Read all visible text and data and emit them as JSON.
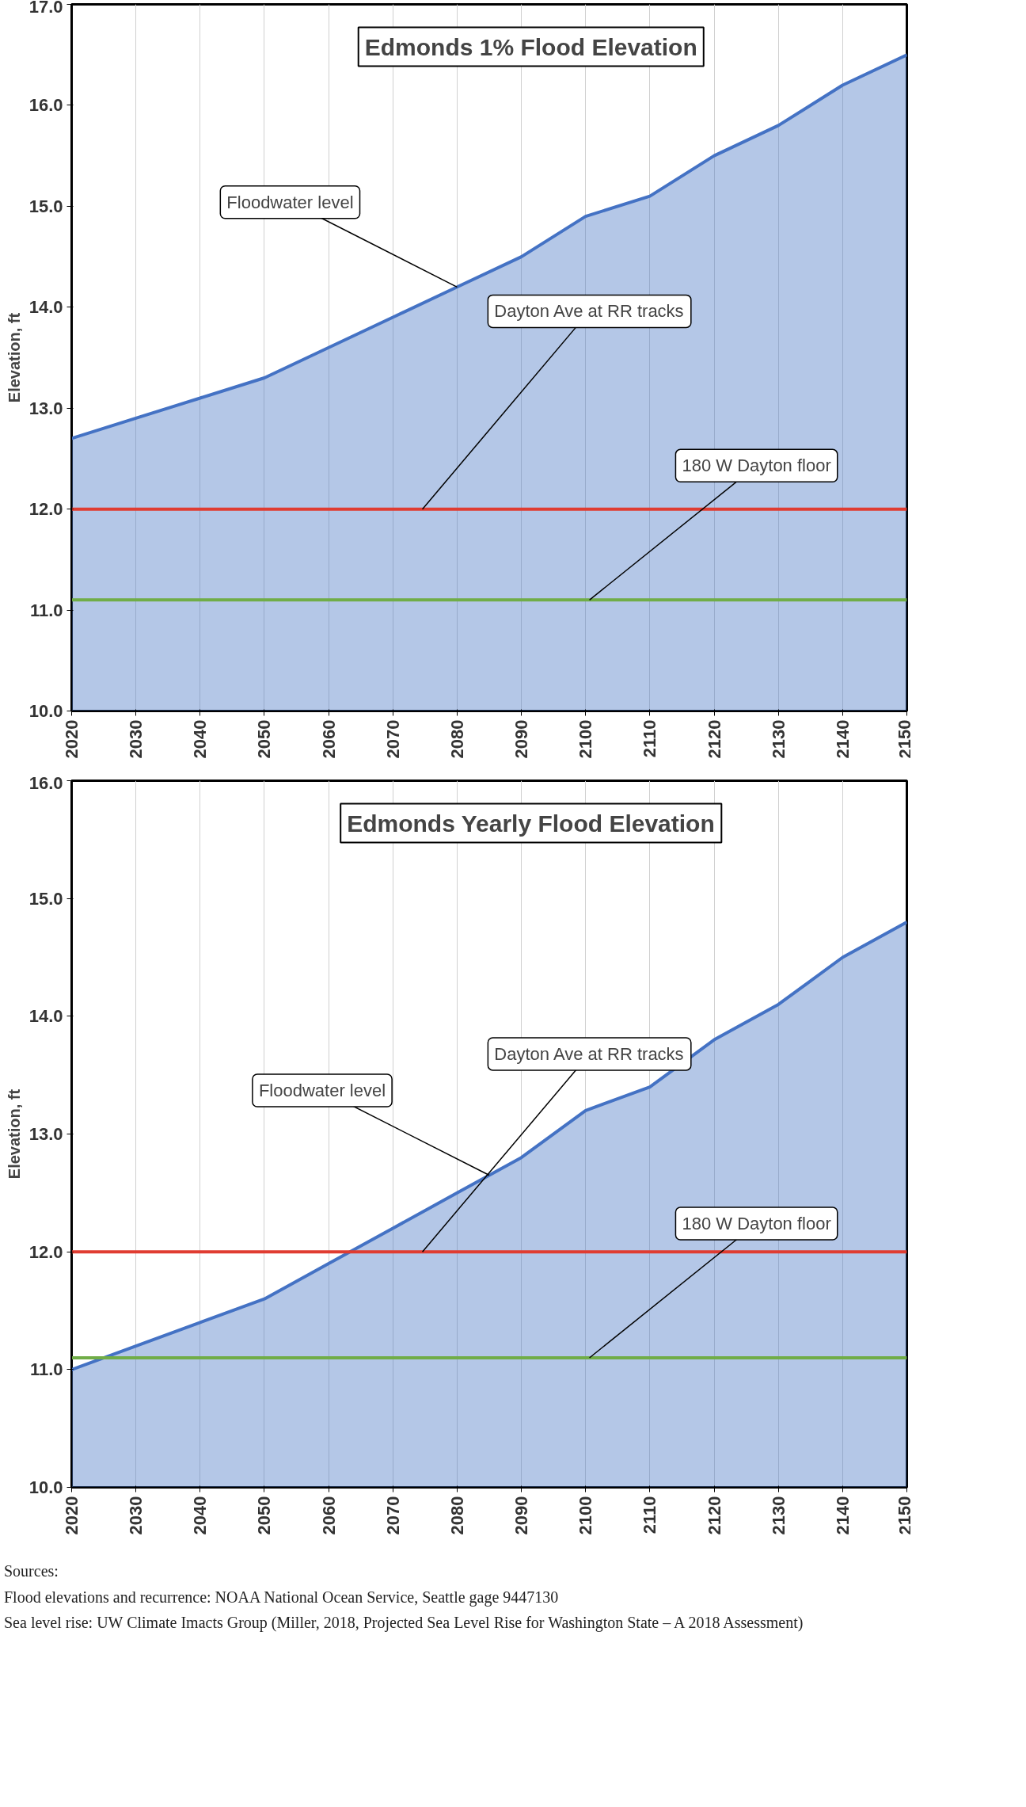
{
  "chart_data": [
    {
      "type": "area",
      "title": "Edmonds 1% Flood Elevation",
      "ylabel": "Elevation, ft",
      "x": [
        2020,
        2030,
        2040,
        2050,
        2060,
        2070,
        2080,
        2090,
        2100,
        2110,
        2120,
        2130,
        2140,
        2150
      ],
      "series": [
        {
          "color": "#4472c4",
          "values": [
            12.7,
            12.9,
            13.1,
            13.3,
            13.6,
            13.9,
            14.2,
            14.5,
            14.9,
            15.1,
            15.5,
            15.8,
            16.2,
            16.5
          ]
        }
      ],
      "xlim": [
        2020,
        2150
      ],
      "xticks": [
        2020,
        2030,
        2040,
        2050,
        2060,
        2070,
        2080,
        2090,
        2100,
        2110,
        2120,
        2130,
        2140,
        2150
      ],
      "ylim": [
        10,
        17
      ],
      "yticks": [
        {
          "value": 10,
          "label": "10.0"
        },
        {
          "value": 11,
          "label": "11.0"
        },
        {
          "value": 12,
          "label": "12.0"
        },
        {
          "value": 13,
          "label": "13.0"
        },
        {
          "value": 14,
          "label": "14.0"
        },
        {
          "value": 15,
          "label": "15.0"
        },
        {
          "value": 16,
          "label": "16.0"
        },
        {
          "value": 17,
          "label": "17.0"
        }
      ],
      "grid": "x",
      "ref_lines": [
        {
          "axis": "y",
          "value": 12.0,
          "label": "Dayton Ave at RR tracks",
          "color": "#e03c31"
        },
        {
          "axis": "y",
          "value": 11.1,
          "label": "180 W Dayton floor",
          "color": "#70ad47"
        }
      ],
      "annotations": [
        {
          "text": "Floodwater level",
          "x": 2080,
          "y": 14.2
        }
      ]
    },
    {
      "type": "area",
      "title": "Edmonds Yearly Flood Elevation",
      "ylabel": "Elevation, ft",
      "x": [
        2020,
        2030,
        2040,
        2050,
        2060,
        2070,
        2080,
        2090,
        2100,
        2110,
        2120,
        2130,
        2140,
        2150
      ],
      "series": [
        {
          "color": "#4472c4",
          "values": [
            11.0,
            11.2,
            11.4,
            11.6,
            11.9,
            12.2,
            12.5,
            12.8,
            13.2,
            13.4,
            13.8,
            14.1,
            14.5,
            14.8
          ]
        }
      ],
      "xlim": [
        2020,
        2150
      ],
      "xticks": [
        2020,
        2030,
        2040,
        2050,
        2060,
        2070,
        2080,
        2090,
        2100,
        2110,
        2120,
        2130,
        2140,
        2150
      ],
      "ylim": [
        10,
        16
      ],
      "yticks": [
        {
          "value": 10,
          "label": "10.0"
        },
        {
          "value": 11,
          "label": "11.0"
        },
        {
          "value": 12,
          "label": "12.0"
        },
        {
          "value": 13,
          "label": "13.0"
        },
        {
          "value": 14,
          "label": "14.0"
        },
        {
          "value": 15,
          "label": "15.0"
        },
        {
          "value": 16,
          "label": "16.0"
        }
      ],
      "grid": "x",
      "ref_lines": [
        {
          "axis": "y",
          "value": 12.0,
          "label": "Dayton Ave at RR tracks",
          "color": "#e03c31"
        },
        {
          "axis": "y",
          "value": 11.1,
          "label": "180 W Dayton floor",
          "color": "#70ad47"
        }
      ],
      "annotations": [
        {
          "text": "Floodwater level",
          "x": 2085,
          "y": 12.65
        },
        "Sources:",
        "Flood elevations and recurrence: NOAA National Ocean Service, Seattle gage 9447130",
        "Sea level rise: UW Climate Imacts Group (Miller, 2018, Projected Sea Level Rise for Washington State – A 2018 Assessment)"
      ]
    }
  ]
}
